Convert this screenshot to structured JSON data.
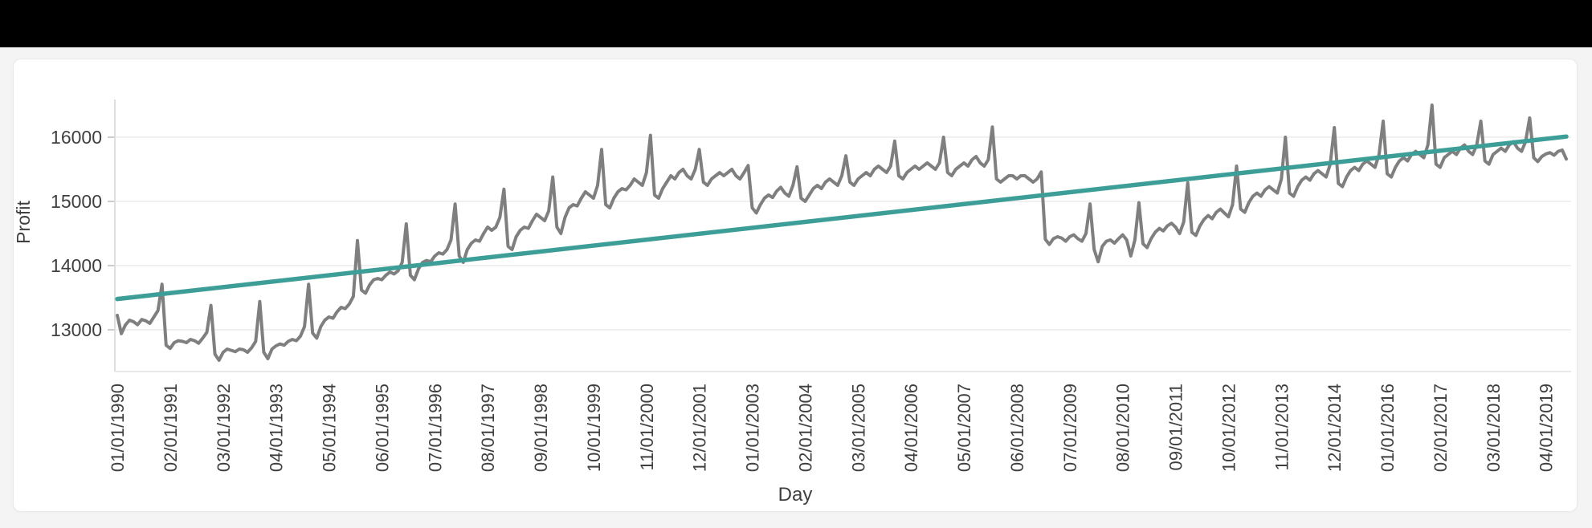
{
  "topbar": {
    "color": "#000000"
  },
  "palette": {
    "page_background": "#f4f4f4",
    "card_background": "#ffffff",
    "gridline_color": "#f0f0f0",
    "axis_line_color": "#dedede",
    "tick_color": "#cccccc",
    "label_color": "#3f3f3f"
  },
  "chart_data": {
    "type": "line",
    "title": "",
    "xlabel": "Day",
    "ylabel": "Profit",
    "grid": "horizontal",
    "legend": "none",
    "y_ticks": [
      13000,
      14000,
      15000,
      16000
    ],
    "ylim": [
      12350,
      16590
    ],
    "x_tick_labels": [
      "01/01/1990",
      "02/01/1991",
      "03/01/1992",
      "04/01/1993",
      "05/01/1994",
      "06/01/1995",
      "07/01/1996",
      "08/01/1997",
      "09/01/1998",
      "10/01/1999",
      "11/01/2000",
      "12/01/2001",
      "01/01/2003",
      "02/01/2004",
      "03/01/2005",
      "04/01/2006",
      "05/01/2007",
      "06/01/2008",
      "07/01/2009",
      "08/01/2010",
      "09/01/2011",
      "10/01/2012",
      "11/01/2013",
      "12/01/2014",
      "01/01/2016",
      "02/01/2017",
      "03/01/2018",
      "04/01/2019"
    ],
    "x_tick_month_indices": [
      0,
      13,
      26,
      39,
      52,
      65,
      78,
      91,
      104,
      117,
      130,
      143,
      156,
      169,
      182,
      195,
      208,
      221,
      234,
      247,
      260,
      273,
      286,
      299,
      312,
      325,
      338,
      351
    ],
    "x_start_label": "01/01/1990",
    "x_months_total": 357,
    "series": [
      {
        "name": "Profit",
        "color": "#7f7f7f",
        "values": [
          13225,
          12940,
          13075,
          13150,
          13125,
          13080,
          13160,
          13140,
          13100,
          13200,
          13300,
          13710,
          12760,
          12710,
          12800,
          12830,
          12820,
          12800,
          12850,
          12830,
          12790,
          12870,
          12960,
          13380,
          12620,
          12525,
          12650,
          12700,
          12680,
          12660,
          12700,
          12690,
          12650,
          12720,
          12820,
          13440,
          12650,
          12550,
          12700,
          12750,
          12780,
          12760,
          12820,
          12850,
          12830,
          12900,
          13050,
          13710,
          12950,
          12870,
          13050,
          13150,
          13200,
          13180,
          13280,
          13350,
          13330,
          13400,
          13520,
          14390,
          13620,
          13570,
          13700,
          13780,
          13800,
          13780,
          13850,
          13900,
          13870,
          13920,
          14050,
          14650,
          13850,
          13780,
          13950,
          14050,
          14080,
          14060,
          14150,
          14200,
          14180,
          14250,
          14400,
          14960,
          14150,
          14050,
          14250,
          14350,
          14400,
          14380,
          14500,
          14600,
          14550,
          14600,
          14750,
          15190,
          14300,
          14250,
          14450,
          14550,
          14600,
          14580,
          14700,
          14800,
          14750,
          14700,
          14850,
          15380,
          14600,
          14500,
          14750,
          14900,
          14950,
          14930,
          15050,
          15150,
          15100,
          15050,
          15250,
          15810,
          14950,
          14900,
          15050,
          15150,
          15200,
          15180,
          15250,
          15350,
          15300,
          15250,
          15450,
          16030,
          15100,
          15050,
          15200,
          15300,
          15400,
          15350,
          15450,
          15500,
          15400,
          15350,
          15500,
          15810,
          15300,
          15250,
          15350,
          15400,
          15450,
          15400,
          15450,
          15500,
          15400,
          15350,
          15450,
          15560,
          14900,
          14820,
          14950,
          15050,
          15100,
          15060,
          15160,
          15220,
          15130,
          15080,
          15250,
          15540,
          15050,
          15000,
          15100,
          15200,
          15250,
          15200,
          15300,
          15350,
          15300,
          15250,
          15400,
          15710,
          15300,
          15250,
          15350,
          15400,
          15450,
          15400,
          15500,
          15550,
          15500,
          15450,
          15550,
          15940,
          15400,
          15350,
          15450,
          15500,
          15550,
          15500,
          15550,
          15600,
          15550,
          15500,
          15600,
          16000,
          15450,
          15400,
          15500,
          15550,
          15600,
          15550,
          15650,
          15700,
          15600,
          15550,
          15650,
          16160,
          15350,
          15300,
          15350,
          15400,
          15400,
          15350,
          15400,
          15400,
          15350,
          15300,
          15350,
          15460,
          14410,
          14330,
          14420,
          14450,
          14430,
          14380,
          14450,
          14480,
          14420,
          14380,
          14500,
          14960,
          14250,
          14060,
          14300,
          14380,
          14400,
          14350,
          14420,
          14480,
          14400,
          14150,
          14400,
          14980,
          14340,
          14280,
          14420,
          14520,
          14580,
          14540,
          14620,
          14660,
          14600,
          14500,
          14680,
          15290,
          14520,
          14470,
          14620,
          14720,
          14780,
          14730,
          14830,
          14880,
          14820,
          14760,
          14950,
          15550,
          14880,
          14830,
          14980,
          15080,
          15130,
          15080,
          15180,
          15230,
          15180,
          15130,
          15350,
          16000,
          15130,
          15080,
          15230,
          15330,
          15380,
          15330,
          15430,
          15480,
          15430,
          15380,
          15580,
          16150,
          15280,
          15230,
          15380,
          15480,
          15530,
          15480,
          15580,
          15630,
          15580,
          15530,
          15730,
          16250,
          15430,
          15380,
          15530,
          15630,
          15680,
          15630,
          15730,
          15780,
          15730,
          15680,
          15880,
          16500,
          15580,
          15530,
          15680,
          15730,
          15780,
          15730,
          15830,
          15880,
          15780,
          15730,
          15880,
          16250,
          15630,
          15580,
          15730,
          15780,
          15830,
          15780,
          15880,
          15930,
          15830,
          15780,
          15930,
          16300,
          15680,
          15620,
          15700,
          15740,
          15760,
          15720,
          15780,
          15800,
          15660
        ]
      },
      {
        "name": "Trend",
        "type": "linear_trend",
        "color": "#3d9e97",
        "values": [
          13480,
          16010
        ]
      }
    ]
  }
}
